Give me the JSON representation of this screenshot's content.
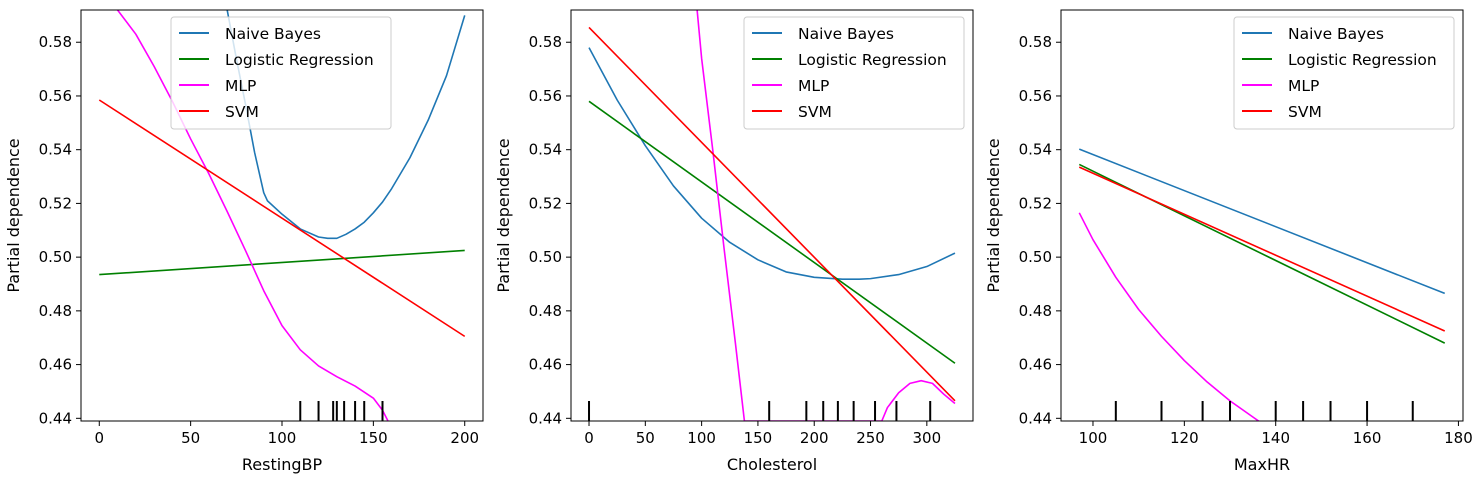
{
  "colors": {
    "naive_bayes": "#1f77b4",
    "logistic_regression": "#008000",
    "mlp": "#ff00ff",
    "svm": "#ff0000",
    "rug": "#000000",
    "legend_border": "#cccccc"
  },
  "chart_data": [
    {
      "type": "line",
      "title": "",
      "xlabel": "RestingBP",
      "ylabel": "Partial dependence",
      "xlim": [
        -10,
        210
      ],
      "ylim": [
        0.439,
        0.592
      ],
      "xticks": [
        0,
        50,
        100,
        150,
        200
      ],
      "yticks": [
        0.44,
        0.46,
        0.48,
        0.5,
        0.52,
        0.54,
        0.56,
        0.58
      ],
      "grid": false,
      "legend": {
        "placement": "top-center",
        "entries": [
          "Naive Bayes",
          "Logistic Regression",
          "MLP",
          "SVM"
        ]
      },
      "deciles": [
        110,
        120,
        128,
        130,
        134,
        140,
        145,
        155
      ],
      "series": [
        {
          "name": "Naive Bayes",
          "color": "#1f77b4",
          "x": [
            70,
            75,
            80,
            85,
            90,
            92,
            100,
            110,
            120,
            125,
            130,
            135,
            140,
            145,
            150,
            155,
            160,
            170,
            180,
            190,
            200
          ],
          "y": [
            0.592,
            0.574,
            0.557,
            0.539,
            0.524,
            0.521,
            0.516,
            0.5105,
            0.5075,
            0.507,
            0.507,
            0.5085,
            0.5105,
            0.513,
            0.5165,
            0.5205,
            0.5255,
            0.537,
            0.551,
            0.5675,
            0.59
          ]
        },
        {
          "name": "Logistic Regression",
          "color": "#008000",
          "x": [
            0,
            200
          ],
          "y": [
            0.4935,
            0.5025
          ]
        },
        {
          "name": "MLP",
          "color": "#ff00ff",
          "x": [
            10,
            20,
            30,
            40,
            50,
            60,
            70,
            80,
            90,
            100,
            110,
            120,
            130,
            140,
            150,
            155,
            158
          ],
          "y": [
            0.592,
            0.583,
            0.571,
            0.558,
            0.544,
            0.531,
            0.517,
            0.5025,
            0.4875,
            0.4745,
            0.4655,
            0.4595,
            0.4555,
            0.452,
            0.4475,
            0.443,
            0.439
          ]
        },
        {
          "name": "SVM",
          "color": "#ff0000",
          "x": [
            0,
            200
          ],
          "y": [
            0.5585,
            0.4705
          ]
        }
      ]
    },
    {
      "type": "line",
      "title": "",
      "xlabel": "Cholesterol",
      "ylabel": "Partial dependence",
      "xlim": [
        -16,
        341
      ],
      "ylim": [
        0.439,
        0.592
      ],
      "xticks": [
        0,
        50,
        100,
        150,
        200,
        250,
        300
      ],
      "yticks": [
        0.44,
        0.46,
        0.48,
        0.5,
        0.52,
        0.54,
        0.56,
        0.58
      ],
      "grid": false,
      "legend": {
        "placement": "top-right",
        "entries": [
          "Naive Bayes",
          "Logistic Regression",
          "MLP",
          "SVM"
        ]
      },
      "deciles": [
        0,
        160,
        193,
        208,
        221,
        235,
        254,
        273,
        303
      ],
      "series": [
        {
          "name": "Naive Bayes",
          "color": "#1f77b4",
          "x": [
            0,
            25,
            50,
            75,
            100,
            125,
            150,
            175,
            200,
            225,
            240,
            250,
            275,
            300,
            325
          ],
          "y": [
            0.578,
            0.5585,
            0.5415,
            0.5265,
            0.5145,
            0.5055,
            0.499,
            0.4945,
            0.4925,
            0.4918,
            0.4918,
            0.492,
            0.4935,
            0.4965,
            0.5015
          ]
        },
        {
          "name": "Logistic Regression",
          "color": "#008000",
          "x": [
            0,
            325
          ],
          "y": [
            0.558,
            0.4605
          ]
        },
        {
          "name": "MLP",
          "color": "#ff00ff",
          "x": [
            96,
            100,
            110,
            120,
            130,
            138,
            260,
            265,
            275,
            285,
            295,
            305,
            315,
            325
          ],
          "y": [
            0.592,
            0.574,
            0.5395,
            0.503,
            0.468,
            0.439,
            0.439,
            0.444,
            0.4495,
            0.453,
            0.454,
            0.453,
            0.449,
            0.4455
          ]
        },
        {
          "name": "SVM",
          "color": "#ff0000",
          "x": [
            0,
            325
          ],
          "y": [
            0.5855,
            0.4465
          ]
        }
      ]
    },
    {
      "type": "line",
      "title": "",
      "xlabel": "MaxHR",
      "ylabel": "Partial dependence",
      "xlim": [
        93,
        181
      ],
      "ylim": [
        0.439,
        0.592
      ],
      "xticks": [
        100,
        120,
        140,
        160,
        180
      ],
      "yticks": [
        0.44,
        0.46,
        0.48,
        0.5,
        0.52,
        0.54,
        0.56,
        0.58
      ],
      "grid": false,
      "legend": {
        "placement": "top-right",
        "entries": [
          "Naive Bayes",
          "Logistic Regression",
          "MLP",
          "SVM"
        ]
      },
      "deciles": [
        105,
        115,
        124,
        130,
        140,
        146,
        152,
        160,
        170
      ],
      "series": [
        {
          "name": "Naive Bayes",
          "color": "#1f77b4",
          "x": [
            97,
            177
          ],
          "y": [
            0.5402,
            0.4865
          ]
        },
        {
          "name": "Logistic Regression",
          "color": "#008000",
          "x": [
            97,
            177
          ],
          "y": [
            0.5345,
            0.468
          ]
        },
        {
          "name": "MLP",
          "color": "#ff00ff",
          "x": [
            97,
            100,
            105,
            110,
            115,
            120,
            125,
            130,
            135,
            140,
            144,
            146
          ],
          "y": [
            0.5165,
            0.5065,
            0.4925,
            0.4805,
            0.4705,
            0.4615,
            0.4535,
            0.4465,
            0.4405,
            0.4345,
            0.43,
            0.428
          ]
        },
        {
          "name": "SVM",
          "color": "#ff0000",
          "x": [
            97,
            177
          ],
          "y": [
            0.5335,
            0.4725
          ]
        }
      ]
    }
  ]
}
